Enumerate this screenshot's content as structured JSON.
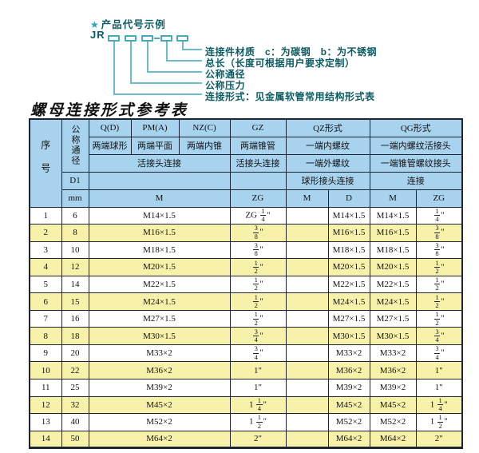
{
  "colors": {
    "header_bg": "#a7d3ee",
    "row_alt_bg": "#f8f1a9",
    "border": "#1e2433",
    "accent_teal": "#43aabf",
    "line_teal": "#6cbccb",
    "label_text": "#0c5b64"
  },
  "diagram": {
    "star_icon": "★",
    "title": "产品代号示例",
    "code_prefix": "JR",
    "code_separator": "-",
    "labels": [
      "连接件材质　c：为碳钢　b：为不锈钢",
      "总长（长度可根据用户要求定制）",
      "公称通径",
      "公称压力",
      "连接形式：见金属软管常用结构形式表"
    ]
  },
  "table": {
    "title": "螺母连接形式参考表",
    "header": {
      "seq": "序号",
      "dn": "公称通径",
      "d1": "D1",
      "mm": "mm",
      "col_q": "Q(D)",
      "col_pm": "PM(A)",
      "col_nz": "NZ(C)",
      "col_gz": "GZ",
      "col_qz": "QZ形式",
      "col_qg": "QG形式",
      "q_desc": "两端球形",
      "pm_desc": "两端平面",
      "nz_desc": "两端内锥",
      "gz_desc": "两端锥管",
      "qz_desc1": "一端内螺纹",
      "qg_desc1": "一端内螺纹活接头",
      "union_conn": "活接头连接",
      "gz_conn": "活接头连接",
      "qz_desc2": "一端外螺纹",
      "qg_desc2": "一端锥管螺纹接头",
      "qz_conn": "球形接头连接",
      "qg_conn": "连接",
      "m1": "M",
      "zg1": "ZG",
      "m2": "M",
      "d2": "D",
      "m3": "M",
      "zg2": "ZG"
    },
    "rows": [
      {
        "no": "1",
        "dn": "6",
        "m": "M14×1.5",
        "gz": "ZG 1/4\"",
        "qz_m": "",
        "qz_d": "M14×1.5",
        "qg_m": "M14×1.5",
        "qg_zg": "1/4\""
      },
      {
        "no": "2",
        "dn": "8",
        "m": "M16×1.5",
        "gz": "3/8\"",
        "qz_m": "",
        "qz_d": "M16×1.5",
        "qg_m": "M16×1.5",
        "qg_zg": "3/8\""
      },
      {
        "no": "3",
        "dn": "10",
        "m": "M18×1.5",
        "gz": "3/8\"",
        "qz_m": "",
        "qz_d": "M18×1.5",
        "qg_m": "M18×1.5",
        "qg_zg": "3/8\""
      },
      {
        "no": "4",
        "dn": "12",
        "m": "M20×1.5",
        "gz": "1/2\"",
        "qz_m": "",
        "qz_d": "M20×1.5",
        "qg_m": "M20×1.5",
        "qg_zg": "1/2\""
      },
      {
        "no": "5",
        "dn": "14",
        "m": "M22×1.5",
        "gz": "1/2\"",
        "qz_m": "",
        "qz_d": "M22×1.5",
        "qg_m": "M22×1.5",
        "qg_zg": "1/2\""
      },
      {
        "no": "6",
        "dn": "15",
        "m": "M24×1.5",
        "gz": "1/2\"",
        "qz_m": "",
        "qz_d": "M24×1.5",
        "qg_m": "M24×1.5",
        "qg_zg": "1/2\""
      },
      {
        "no": "7",
        "dn": "16",
        "m": "M27×1.5",
        "gz": "1/2\"",
        "qz_m": "",
        "qz_d": "M27×1.5",
        "qg_m": "M27×1.5",
        "qg_zg": "1/2\""
      },
      {
        "no": "8",
        "dn": "18",
        "m": "M30×1.5",
        "gz": "3/4\"",
        "qz_m": "",
        "qz_d": "M30×1.5",
        "qg_m": "M30×1.5",
        "qg_zg": "3/4\""
      },
      {
        "no": "9",
        "dn": "20",
        "m": "M33×2",
        "gz": "3/4\"",
        "qz_m": "",
        "qz_d": "M33×2",
        "qg_m": "M33×2",
        "qg_zg": "3/4\""
      },
      {
        "no": "10",
        "dn": "22",
        "m": "M36×2",
        "gz": "1\"",
        "qz_m": "",
        "qz_d": "M36×2",
        "qg_m": "M36×2",
        "qg_zg": "1\""
      },
      {
        "no": "11",
        "dn": "25",
        "m": "M39×2",
        "gz": "1\"",
        "qz_m": "",
        "qz_d": "M39×2",
        "qg_m": "M39×2",
        "qg_zg": "1\""
      },
      {
        "no": "12",
        "dn": "32",
        "m": "M45×2",
        "gz": "1 1/4\"",
        "qz_m": "",
        "qz_d": "M45×2",
        "qg_m": "M45×2",
        "qg_zg": "1 1/4\""
      },
      {
        "no": "13",
        "dn": "40",
        "m": "M52×2",
        "gz": "1 1/2\"",
        "qz_m": "",
        "qz_d": "M52×2",
        "qg_m": "M52×2",
        "qg_zg": "1 1/2\""
      },
      {
        "no": "14",
        "dn": "50",
        "m": "M64×2",
        "gz": "2\"",
        "qz_m": "",
        "qz_d": "M64×2",
        "qg_m": "M64×2",
        "qg_zg": "2\""
      }
    ]
  }
}
